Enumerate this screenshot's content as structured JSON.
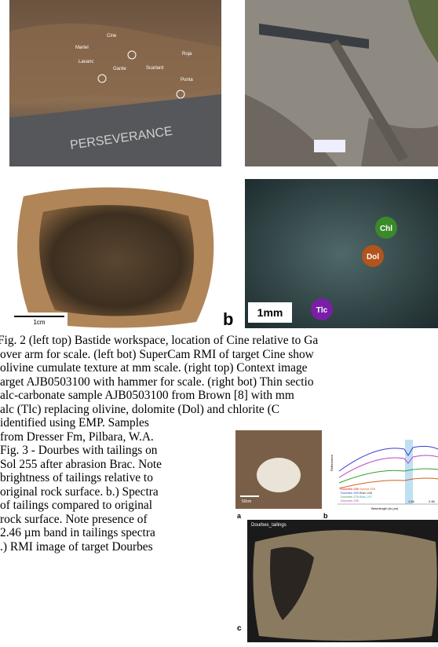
{
  "figure2": {
    "site_labels": [
      "Cine",
      "Martel",
      "Lavanc",
      "Garde",
      "Scarlard",
      "Roja",
      "Punta"
    ],
    "rover_text": "PERSEVERANCE",
    "scale_cm": "1cm",
    "panel_b": "b",
    "scale_mm": "1mm",
    "minerals": [
      "Chl",
      "Dol",
      "Tlc"
    ]
  },
  "caption_wide": [
    "Fig. 2 (left top) Bastide workspace, location of Cine relative to Ga",
    "over arm for scale. (left bot) SuperCam RMI of target Cine show",
    "olivine cumulate texture at mm scale. (right top) Context image",
    "arget AJB0503100 with hammer for scale. (right bot) Thin sectio",
    "alc-carbonate sample AJB0503100 from Brown [8] with mm",
    "alc (Tlc) replacing olivine, dolomite (Dol) and chlorite (C"
  ],
  "caption_narrow": [
    "identified using EMP.   Samples",
    "from Dresser Fm, Pilbara, W.A.",
    "Fig. 3 - Dourbes with tailings on",
    "Sol 255 after abrasion Brac. Note",
    "brightness of tailings relative to",
    "original rock surface. b.) Spectra",
    "of tailings compared to   original",
    "rock surface. Note presence of",
    "2.46 µm band in  tailings spectra",
    ".)  RMI image of target Dourbes"
  ],
  "figure3": {
    "panel_labels": [
      "a",
      "b",
      "c"
    ],
    "scale_a": "50cm",
    "rmi_title": "Dourbes_tailings",
    "legend": [
      "Dourbes 255",
      "Dourbes 269",
      "Dourbes 279",
      "Dourbes 339",
      "Sysma 259",
      "Brac 246",
      "Brac 247"
    ],
    "band_labels": [
      "1.94",
      "2.46"
    ],
    "x_axis_label": "Wavelength (in µm)",
    "y_axis_label": "Reflectance"
  }
}
